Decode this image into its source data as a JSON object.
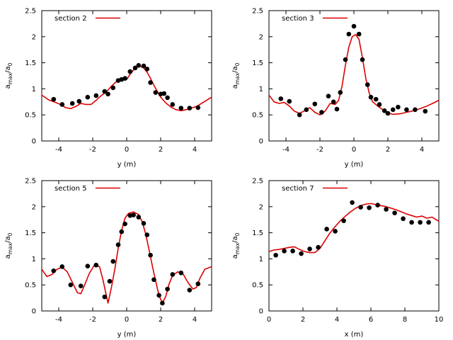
{
  "chart_data": [
    {
      "type": "line+scatter",
      "legend": "section 2",
      "xlabel": "y (m)",
      "ylabel_main": "a",
      "ylabel_sub1": "max",
      "ylabel_mid": "/a",
      "ylabel_sub2": "0",
      "xlim": [
        -5,
        5
      ],
      "ylim": [
        0,
        2.5
      ],
      "xticks": [
        -4,
        -2,
        0,
        2,
        4
      ],
      "yticks": [
        0,
        0.5,
        1,
        1.5,
        2,
        2.5
      ],
      "line_color": "#dd0000",
      "marker_color": "#000000",
      "line": [
        [
          -5,
          0.88
        ],
        [
          -4.6,
          0.79
        ],
        [
          -4.2,
          0.74
        ],
        [
          -3.9,
          0.7
        ],
        [
          -3.6,
          0.64
        ],
        [
          -3.3,
          0.62
        ],
        [
          -3.0,
          0.66
        ],
        [
          -2.7,
          0.72
        ],
        [
          -2.4,
          0.7
        ],
        [
          -2.1,
          0.7
        ],
        [
          -1.8,
          0.78
        ],
        [
          -1.5,
          0.87
        ],
        [
          -1.2,
          0.94
        ],
        [
          -0.9,
          1.05
        ],
        [
          -0.6,
          1.14
        ],
        [
          -0.3,
          1.16
        ],
        [
          0,
          1.18
        ],
        [
          0.2,
          1.28
        ],
        [
          0.4,
          1.36
        ],
        [
          0.6,
          1.42
        ],
        [
          0.8,
          1.43
        ],
        [
          1.0,
          1.4
        ],
        [
          1.2,
          1.32
        ],
        [
          1.4,
          1.2
        ],
        [
          1.6,
          1.07
        ],
        [
          1.8,
          0.95
        ],
        [
          2.0,
          0.84
        ],
        [
          2.3,
          0.73
        ],
        [
          2.6,
          0.65
        ],
        [
          2.9,
          0.6
        ],
        [
          3.2,
          0.58
        ],
        [
          3.5,
          0.6
        ],
        [
          3.8,
          0.63
        ],
        [
          4.1,
          0.66
        ],
        [
          4.5,
          0.74
        ],
        [
          5,
          0.84
        ]
      ],
      "points": [
        [
          -4.3,
          0.8
        ],
        [
          -3.8,
          0.7
        ],
        [
          -3.2,
          0.72
        ],
        [
          -2.8,
          0.76
        ],
        [
          -2.3,
          0.84
        ],
        [
          -1.8,
          0.87
        ],
        [
          -1.3,
          0.95
        ],
        [
          -1.1,
          0.9
        ],
        [
          -0.8,
          1.02
        ],
        [
          -0.5,
          1.16
        ],
        [
          -0.3,
          1.18
        ],
        [
          -0.1,
          1.2
        ],
        [
          0.2,
          1.33
        ],
        [
          0.5,
          1.4
        ],
        [
          0.7,
          1.45
        ],
        [
          1.0,
          1.44
        ],
        [
          1.2,
          1.38
        ],
        [
          1.4,
          1.12
        ],
        [
          1.7,
          0.93
        ],
        [
          2.0,
          0.9
        ],
        [
          2.2,
          0.91
        ],
        [
          2.4,
          0.83
        ],
        [
          2.7,
          0.7
        ],
        [
          3.2,
          0.63
        ],
        [
          3.7,
          0.63
        ],
        [
          4.2,
          0.64
        ]
      ]
    },
    {
      "type": "line+scatter",
      "legend": "section 3",
      "xlabel": "y (m)",
      "ylabel_main": "a",
      "ylabel_sub1": "max",
      "ylabel_mid": "/a",
      "ylabel_sub2": "0",
      "xlim": [
        -5,
        5
      ],
      "ylim": [
        0,
        2.5
      ],
      "xticks": [
        -4,
        -2,
        0,
        2,
        4
      ],
      "yticks": [
        0,
        0.5,
        1,
        1.5,
        2,
        2.5
      ],
      "line_color": "#dd0000",
      "marker_color": "#000000",
      "line": [
        [
          -5,
          0.88
        ],
        [
          -4.7,
          0.75
        ],
        [
          -4.4,
          0.72
        ],
        [
          -4.1,
          0.74
        ],
        [
          -3.8,
          0.67
        ],
        [
          -3.5,
          0.57
        ],
        [
          -3.2,
          0.53
        ],
        [
          -2.9,
          0.58
        ],
        [
          -2.6,
          0.64
        ],
        [
          -2.3,
          0.55
        ],
        [
          -2.0,
          0.5
        ],
        [
          -1.7,
          0.57
        ],
        [
          -1.4,
          0.72
        ],
        [
          -1.1,
          0.7
        ],
        [
          -0.9,
          0.78
        ],
        [
          -0.7,
          1.05
        ],
        [
          -0.5,
          1.45
        ],
        [
          -0.3,
          1.8
        ],
        [
          -0.1,
          2.0
        ],
        [
          0.1,
          2.04
        ],
        [
          0.3,
          1.95
        ],
        [
          0.5,
          1.6
        ],
        [
          0.7,
          1.2
        ],
        [
          0.9,
          0.92
        ],
        [
          1.1,
          0.75
        ],
        [
          1.4,
          0.67
        ],
        [
          1.7,
          0.6
        ],
        [
          2.0,
          0.54
        ],
        [
          2.3,
          0.51
        ],
        [
          2.7,
          0.52
        ],
        [
          3.1,
          0.55
        ],
        [
          3.5,
          0.58
        ],
        [
          3.9,
          0.62
        ],
        [
          4.3,
          0.67
        ],
        [
          4.7,
          0.73
        ],
        [
          5,
          0.78
        ]
      ],
      "points": [
        [
          -4.3,
          0.81
        ],
        [
          -3.8,
          0.76
        ],
        [
          -3.2,
          0.5
        ],
        [
          -2.8,
          0.6
        ],
        [
          -2.3,
          0.71
        ],
        [
          -1.9,
          0.55
        ],
        [
          -1.5,
          0.86
        ],
        [
          -1.2,
          0.75
        ],
        [
          -1.0,
          0.61
        ],
        [
          -0.8,
          0.93
        ],
        [
          -0.5,
          1.56
        ],
        [
          -0.3,
          2.05
        ],
        [
          0,
          2.2
        ],
        [
          0.3,
          2.05
        ],
        [
          0.5,
          1.56
        ],
        [
          0.8,
          1.08
        ],
        [
          1.0,
          0.84
        ],
        [
          1.3,
          0.8
        ],
        [
          1.5,
          0.7
        ],
        [
          1.8,
          0.58
        ],
        [
          2.0,
          0.53
        ],
        [
          2.3,
          0.6
        ],
        [
          2.6,
          0.65
        ],
        [
          3.1,
          0.6
        ],
        [
          3.6,
          0.6
        ],
        [
          4.2,
          0.57
        ]
      ]
    },
    {
      "type": "line+scatter",
      "legend": "section 5",
      "xlabel": "y (m)",
      "ylabel_main": "a",
      "ylabel_sub1": "max",
      "ylabel_mid": "/a",
      "ylabel_sub2": "0",
      "xlim": [
        -5,
        5
      ],
      "ylim": [
        0,
        2.5
      ],
      "xticks": [
        -4,
        -2,
        0,
        2,
        4
      ],
      "yticks": [
        0,
        0.5,
        1,
        1.5,
        2,
        2.5
      ],
      "line_color": "#dd0000",
      "marker_color": "#000000",
      "line": [
        [
          -5,
          0.8
        ],
        [
          -4.7,
          0.66
        ],
        [
          -4.4,
          0.7
        ],
        [
          -4.1,
          0.8
        ],
        [
          -3.8,
          0.84
        ],
        [
          -3.5,
          0.75
        ],
        [
          -3.2,
          0.55
        ],
        [
          -2.9,
          0.35
        ],
        [
          -2.7,
          0.33
        ],
        [
          -2.5,
          0.48
        ],
        [
          -2.2,
          0.72
        ],
        [
          -1.9,
          0.88
        ],
        [
          -1.6,
          0.85
        ],
        [
          -1.4,
          0.6
        ],
        [
          -1.2,
          0.3
        ],
        [
          -1.1,
          0.15
        ],
        [
          -0.9,
          0.45
        ],
        [
          -0.7,
          0.8
        ],
        [
          -0.5,
          1.2
        ],
        [
          -0.3,
          1.55
        ],
        [
          -0.1,
          1.78
        ],
        [
          0.1,
          1.87
        ],
        [
          0.4,
          1.9
        ],
        [
          0.7,
          1.85
        ],
        [
          0.9,
          1.72
        ],
        [
          1.1,
          1.5
        ],
        [
          1.3,
          1.2
        ],
        [
          1.5,
          0.88
        ],
        [
          1.7,
          0.58
        ],
        [
          1.9,
          0.3
        ],
        [
          2.1,
          0.15
        ],
        [
          2.3,
          0.28
        ],
        [
          2.5,
          0.52
        ],
        [
          2.7,
          0.68
        ],
        [
          3.0,
          0.75
        ],
        [
          3.3,
          0.72
        ],
        [
          3.6,
          0.55
        ],
        [
          3.9,
          0.42
        ],
        [
          4.1,
          0.45
        ],
        [
          4.3,
          0.62
        ],
        [
          4.6,
          0.8
        ],
        [
          5,
          0.85
        ]
      ],
      "points": [
        [
          -4.3,
          0.77
        ],
        [
          -3.8,
          0.85
        ],
        [
          -3.3,
          0.5
        ],
        [
          -2.7,
          0.48
        ],
        [
          -2.3,
          0.86
        ],
        [
          -1.8,
          0.88
        ],
        [
          -1.3,
          0.27
        ],
        [
          -1.0,
          0.57
        ],
        [
          -0.8,
          0.95
        ],
        [
          -0.5,
          1.27
        ],
        [
          -0.3,
          1.52
        ],
        [
          -0.1,
          1.67
        ],
        [
          0.2,
          1.83
        ],
        [
          0.4,
          1.84
        ],
        [
          0.7,
          1.8
        ],
        [
          1.0,
          1.68
        ],
        [
          1.2,
          1.46
        ],
        [
          1.4,
          1.07
        ],
        [
          1.6,
          0.6
        ],
        [
          1.9,
          0.3
        ],
        [
          2.1,
          0.15
        ],
        [
          2.4,
          0.42
        ],
        [
          2.7,
          0.7
        ],
        [
          3.2,
          0.73
        ],
        [
          3.7,
          0.4
        ],
        [
          4.2,
          0.52
        ]
      ]
    },
    {
      "type": "line+scatter",
      "legend": "section 7",
      "xlabel": "x (m)",
      "ylabel_main": "a",
      "ylabel_sub1": "max",
      "ylabel_mid": "/a",
      "ylabel_sub2": "0",
      "xlim": [
        0,
        10
      ],
      "ylim": [
        0,
        2.5
      ],
      "xticks": [
        0,
        2,
        4,
        6,
        8,
        10
      ],
      "yticks": [
        0,
        0.5,
        1,
        1.5,
        2,
        2.5
      ],
      "line_color": "#dd0000",
      "marker_color": "#000000",
      "line": [
        [
          0,
          1.14
        ],
        [
          0.3,
          1.17
        ],
        [
          0.6,
          1.18
        ],
        [
          0.9,
          1.2
        ],
        [
          1.2,
          1.22
        ],
        [
          1.5,
          1.23
        ],
        [
          1.8,
          1.18
        ],
        [
          2.1,
          1.14
        ],
        [
          2.4,
          1.12
        ],
        [
          2.7,
          1.12
        ],
        [
          3.0,
          1.2
        ],
        [
          3.3,
          1.35
        ],
        [
          3.6,
          1.5
        ],
        [
          3.9,
          1.62
        ],
        [
          4.2,
          1.73
        ],
        [
          4.5,
          1.82
        ],
        [
          4.8,
          1.9
        ],
        [
          5.1,
          1.97
        ],
        [
          5.4,
          2.02
        ],
        [
          5.7,
          2.05
        ],
        [
          6.0,
          2.06
        ],
        [
          6.3,
          2.04
        ],
        [
          6.6,
          2.02
        ],
        [
          6.9,
          2.0
        ],
        [
          7.2,
          1.97
        ],
        [
          7.5,
          1.94
        ],
        [
          7.8,
          1.9
        ],
        [
          8.1,
          1.86
        ],
        [
          8.4,
          1.83
        ],
        [
          8.7,
          1.8
        ],
        [
          9.0,
          1.82
        ],
        [
          9.3,
          1.78
        ],
        [
          9.6,
          1.8
        ],
        [
          10,
          1.72
        ]
      ],
      "points": [
        [
          0.4,
          1.07
        ],
        [
          0.9,
          1.15
        ],
        [
          1.4,
          1.15
        ],
        [
          1.9,
          1.1
        ],
        [
          2.4,
          1.19
        ],
        [
          2.9,
          1.22
        ],
        [
          3.4,
          1.57
        ],
        [
          3.9,
          1.53
        ],
        [
          4.4,
          1.73
        ],
        [
          4.9,
          2.08
        ],
        [
          5.4,
          1.99
        ],
        [
          5.9,
          1.98
        ],
        [
          6.4,
          2.03
        ],
        [
          6.9,
          1.95
        ],
        [
          7.4,
          1.88
        ],
        [
          7.9,
          1.77
        ],
        [
          8.4,
          1.7
        ],
        [
          8.9,
          1.7
        ],
        [
          9.4,
          1.7
        ]
      ]
    }
  ]
}
